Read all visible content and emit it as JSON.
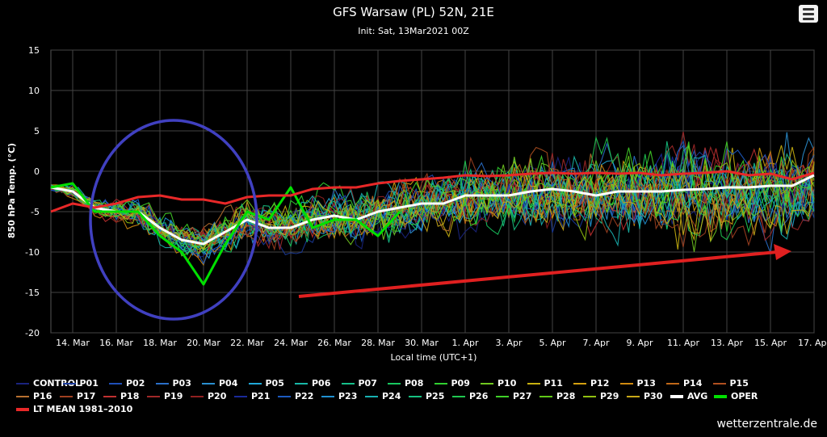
{
  "header": {
    "title": "GFS Warsaw (PL) 52N, 21E",
    "subtitle": "Init: Sat, 13Mar2021 00Z"
  },
  "menu": {
    "icon": "hamburger-menu-icon"
  },
  "credits": "wetterzentrale.de",
  "chart_data": {
    "type": "line",
    "title": "GFS Warsaw (PL) 52N, 21E",
    "subtitle": "Init: Sat, 13Mar2021 00Z",
    "xlabel": "Local time (UTC+1)",
    "ylabel": "850 hPa Temp. (°C)",
    "ylim": [
      -20,
      15
    ],
    "yticks": [
      15,
      10,
      5,
      0,
      -5,
      -10,
      -15,
      -20
    ],
    "xrange": [
      "2021-03-13",
      "2021-04-17"
    ],
    "xticks": [
      "14. Mar",
      "16. Mar",
      "18. Mar",
      "20. Mar",
      "22. Mar",
      "24. Mar",
      "26. Mar",
      "28. Mar",
      "30. Mar",
      "1. Apr",
      "3. Apr",
      "5. Apr",
      "7. Apr",
      "9. Apr",
      "11. Apr",
      "13. Apr",
      "15. Apr",
      "17. Apr"
    ],
    "grid": true,
    "legend_position": "bottom",
    "series_colors": {
      "CONTROL": "#1a237e",
      "P01": "#1a3a9a",
      "P02": "#1f4fb8",
      "P03": "#2a6fc9",
      "P04": "#2a8fd0",
      "P05": "#20a8d8",
      "P06": "#18b8a8",
      "P07": "#16c08a",
      "P08": "#18c860",
      "P09": "#30d030",
      "P10": "#70c820",
      "P11": "#c8b010",
      "P12": "#d4a010",
      "P13": "#d08a10",
      "P14": "#c06818",
      "P15": "#b05020",
      "P16": "#b87030",
      "P17": "#a04020",
      "P18": "#c03030",
      "P19": "#a02828",
      "P20": "#902020",
      "P21": "#1a2a9a",
      "P22": "#1c5ac0",
      "P23": "#2090d0",
      "P24": "#18b0b0",
      "P25": "#16c080",
      "P26": "#20c850",
      "P27": "#40d028",
      "P28": "#60c818",
      "P29": "#90c010",
      "P30": "#c8a818",
      "AVG": "#ffffff",
      "OPER": "#00e000",
      "LT MEAN 1981-2010": "#e82828"
    },
    "series": [
      {
        "name": "AVG",
        "x": [
          "2021-03-13",
          "2021-03-14",
          "2021-03-15",
          "2021-03-16",
          "2021-03-17",
          "2021-03-18",
          "2021-03-19",
          "2021-03-20",
          "2021-03-21",
          "2021-03-22",
          "2021-03-23",
          "2021-03-24",
          "2021-03-25",
          "2021-03-26",
          "2021-03-27",
          "2021-03-28",
          "2021-03-29",
          "2021-03-30",
          "2021-03-31",
          "2021-04-01",
          "2021-04-02",
          "2021-04-03",
          "2021-04-04",
          "2021-04-05",
          "2021-04-06",
          "2021-04-07",
          "2021-04-08",
          "2021-04-09",
          "2021-04-10",
          "2021-04-11",
          "2021-04-12",
          "2021-04-13",
          "2021-04-14",
          "2021-04-15",
          "2021-04-16",
          "2021-04-17"
        ],
        "values": [
          -2,
          -2.5,
          -4.5,
          -5,
          -5,
          -7,
          -8.5,
          -9,
          -7.5,
          -6,
          -7,
          -7,
          -6,
          -5.5,
          -6,
          -5,
          -4.5,
          -4,
          -4,
          -3,
          -3,
          -3,
          -2.5,
          -2.2,
          -2.5,
          -3,
          -2.5,
          -2.5,
          -2.5,
          -2.3,
          -2.2,
          -2,
          -2,
          -1.8,
          -1.8,
          -0.5
        ]
      },
      {
        "name": "OPER",
        "x": [
          "2021-03-13",
          "2021-03-14",
          "2021-03-15",
          "2021-03-16",
          "2021-03-17",
          "2021-03-18",
          "2021-03-19",
          "2021-03-20",
          "2021-03-21",
          "2021-03-22",
          "2021-03-23",
          "2021-03-24",
          "2021-03-25",
          "2021-03-26",
          "2021-03-27",
          "2021-03-28",
          "2021-03-29"
        ],
        "values": [
          -2,
          -1.5,
          -5,
          -5,
          -5,
          -8,
          -10,
          -14,
          -9,
          -5,
          -6,
          -2,
          -7,
          -6,
          -6,
          -8,
          -5
        ]
      },
      {
        "name": "LT MEAN 1981-2010",
        "x": [
          "2021-03-13",
          "2021-03-14",
          "2021-03-15",
          "2021-03-16",
          "2021-03-17",
          "2021-03-18",
          "2021-03-19",
          "2021-03-20",
          "2021-03-21",
          "2021-03-22",
          "2021-03-23",
          "2021-03-24",
          "2021-03-25",
          "2021-03-26",
          "2021-03-27",
          "2021-03-28",
          "2021-03-29",
          "2021-03-30",
          "2021-03-31",
          "2021-04-01",
          "2021-04-02",
          "2021-04-03",
          "2021-04-04",
          "2021-04-05",
          "2021-04-06",
          "2021-04-07",
          "2021-04-08",
          "2021-04-09",
          "2021-04-10",
          "2021-04-11",
          "2021-04-12",
          "2021-04-13",
          "2021-04-14",
          "2021-04-15",
          "2021-04-16",
          "2021-04-17"
        ],
        "values": [
          -5,
          -4,
          -4.5,
          -4,
          -3.2,
          -3,
          -3.5,
          -3.5,
          -4,
          -3.2,
          -3,
          -3,
          -2.2,
          -2,
          -2,
          -1.5,
          -1.2,
          -1,
          -0.8,
          -0.5,
          -0.6,
          -0.5,
          -0.3,
          -0.2,
          -0.3,
          -0.2,
          -0.3,
          -0.2,
          -0.5,
          -0.3,
          -0.2,
          0,
          -0.5,
          -0.3,
          -1,
          -0.2
        ]
      }
    ]
  },
  "legend": {
    "items": [
      {
        "label": "CONTROL",
        "color": "#1a237e"
      },
      {
        "label": "P01",
        "color": "#1a3a9a"
      },
      {
        "label": "P02",
        "color": "#1f4fb8"
      },
      {
        "label": "P03",
        "color": "#2a6fc9"
      },
      {
        "label": "P04",
        "color": "#2a8fd0"
      },
      {
        "label": "P05",
        "color": "#20a8d8"
      },
      {
        "label": "P06",
        "color": "#18b8a8"
      },
      {
        "label": "P07",
        "color": "#16c08a"
      },
      {
        "label": "P08",
        "color": "#18c860"
      },
      {
        "label": "P09",
        "color": "#30d030"
      },
      {
        "label": "P10",
        "color": "#70c820"
      },
      {
        "label": "P11",
        "color": "#c8b010"
      },
      {
        "label": "P12",
        "color": "#d4a010"
      },
      {
        "label": "P13",
        "color": "#d08a10"
      },
      {
        "label": "P14",
        "color": "#c06818"
      },
      {
        "label": "P15",
        "color": "#b05020"
      },
      {
        "label": "P16",
        "color": "#b87030"
      },
      {
        "label": "P17",
        "color": "#a04020"
      },
      {
        "label": "P18",
        "color": "#c03030"
      },
      {
        "label": "P19",
        "color": "#a02828"
      },
      {
        "label": "P20",
        "color": "#902020"
      },
      {
        "label": "P21",
        "color": "#1a2a9a"
      },
      {
        "label": "P22",
        "color": "#1c5ac0"
      },
      {
        "label": "P23",
        "color": "#2090d0"
      },
      {
        "label": "P24",
        "color": "#18b0b0"
      },
      {
        "label": "P25",
        "color": "#16c080"
      },
      {
        "label": "P26",
        "color": "#20c850"
      },
      {
        "label": "P27",
        "color": "#40d028"
      },
      {
        "label": "P28",
        "color": "#60c818"
      },
      {
        "label": "P29",
        "color": "#90c010"
      },
      {
        "label": "P30",
        "color": "#c8a818"
      },
      {
        "label": "AVG",
        "color": "#ffffff"
      },
      {
        "label": "OPER",
        "color": "#00e000"
      },
      {
        "label": "LT MEAN 1981–2010",
        "color": "#e82828"
      }
    ]
  },
  "annotations": {
    "cold_anomaly_ellipse_color": "#4040c0",
    "trend_arrow_color": "#e02020"
  }
}
